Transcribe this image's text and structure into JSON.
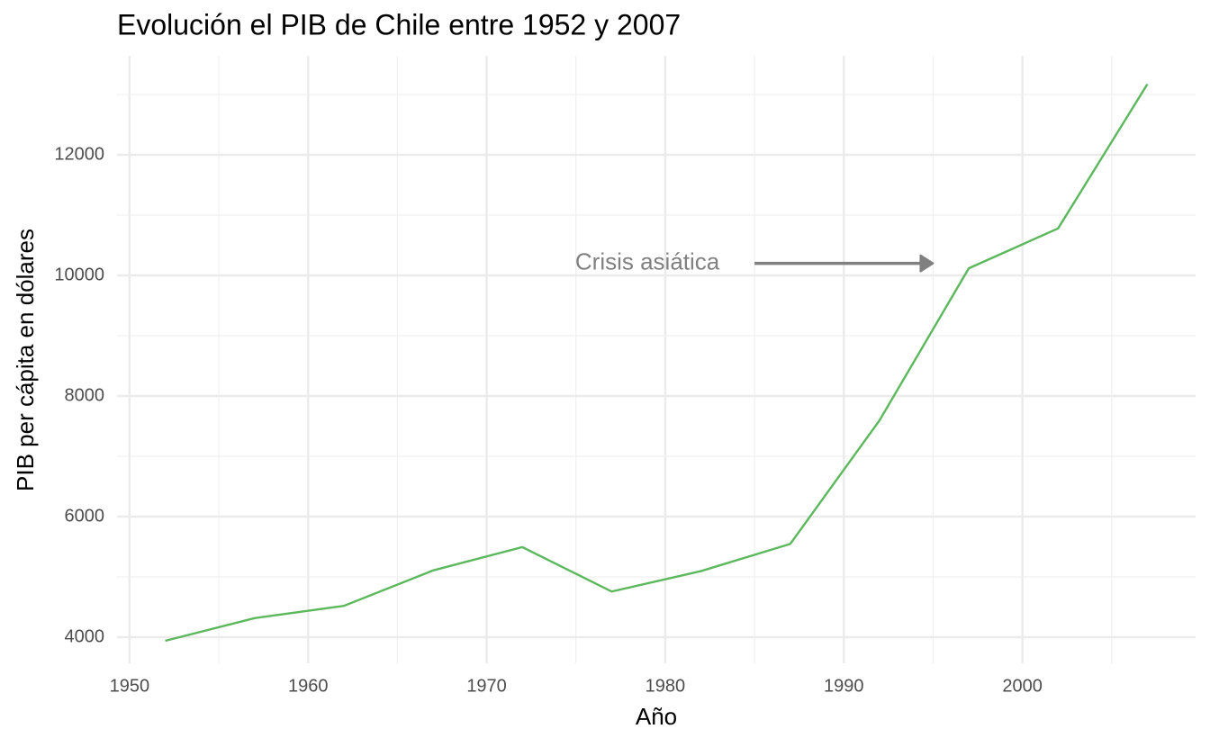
{
  "chart_data": {
    "type": "line",
    "title": "Evolución el PIB de Chile entre 1952 y 2007",
    "x_label": "Año",
    "y_label": "PIB per cápita en dólares",
    "x": [
      1952,
      1957,
      1962,
      1967,
      1972,
      1977,
      1982,
      1987,
      1992,
      1997,
      2002,
      2007
    ],
    "series": [
      {
        "color": "#5cb85c",
        "values": [
          3940,
          4316,
          4519,
          5107,
          5494,
          4757,
          5096,
          5547,
          7596,
          10118,
          10779,
          13172
        ]
      }
    ],
    "xlim": [
      1949.3,
      2009.7
    ],
    "ylim": [
      3567,
      13642
    ],
    "xticks": [
      1950,
      1960,
      1970,
      1980,
      1990,
      2000
    ],
    "yticks": [
      4000,
      6000,
      8000,
      10000,
      12000
    ],
    "x_minor_ticks": [
      1955,
      1965,
      1975,
      1985,
      1995,
      2005
    ],
    "y_minor_ticks": [
      5000,
      7000,
      9000,
      11000,
      13000
    ],
    "grid": true,
    "annotation": {
      "text": "Crisis asiática",
      "x": 1979,
      "y": 10200,
      "color": "#808080",
      "arrow": {
        "x": [
          1985,
          1995
        ],
        "y": 10200
      }
    }
  }
}
